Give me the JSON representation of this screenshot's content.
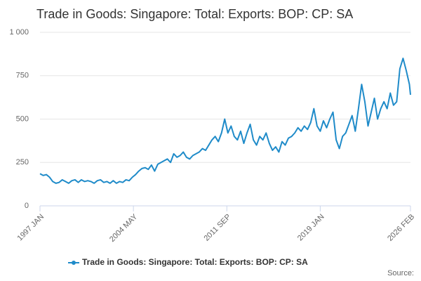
{
  "chart_data": {
    "type": "line",
    "title": "Trade in Goods: Singapore: Total: Exports: BOP: CP: SA",
    "source": "Source:",
    "x": [
      "1997-01",
      "1997-04",
      "1997-07",
      "1997-10",
      "1998-01",
      "1998-04",
      "1998-07",
      "1998-10",
      "1999-01",
      "1999-04",
      "1999-07",
      "1999-10",
      "2000-01",
      "2000-04",
      "2000-07",
      "2000-10",
      "2001-01",
      "2001-04",
      "2001-07",
      "2001-10",
      "2002-01",
      "2002-04",
      "2002-07",
      "2002-10",
      "2003-01",
      "2003-04",
      "2003-07",
      "2003-10",
      "2004-01",
      "2004-04",
      "2004-07",
      "2004-10",
      "2005-01",
      "2005-04",
      "2005-07",
      "2005-10",
      "2006-01",
      "2006-04",
      "2006-07",
      "2006-10",
      "2007-01",
      "2007-04",
      "2007-07",
      "2007-10",
      "2008-01",
      "2008-04",
      "2008-07",
      "2008-10",
      "2009-01",
      "2009-04",
      "2009-07",
      "2009-10",
      "2010-01",
      "2010-04",
      "2010-07",
      "2010-10",
      "2011-01",
      "2011-04",
      "2011-07",
      "2011-10",
      "2012-01",
      "2012-04",
      "2012-07",
      "2012-10",
      "2013-01",
      "2013-04",
      "2013-07",
      "2013-10",
      "2014-01",
      "2014-04",
      "2014-07",
      "2014-10",
      "2015-01",
      "2015-04",
      "2015-07",
      "2015-10",
      "2016-01",
      "2016-04",
      "2016-07",
      "2016-10",
      "2017-01",
      "2017-04",
      "2017-07",
      "2017-10",
      "2018-01",
      "2018-04",
      "2018-07",
      "2018-10",
      "2019-01",
      "2019-04",
      "2019-07",
      "2019-10",
      "2020-01",
      "2020-04",
      "2020-07",
      "2020-10",
      "2021-01",
      "2021-04",
      "2021-07",
      "2021-10",
      "2022-01",
      "2022-04",
      "2022-07",
      "2022-10",
      "2023-01",
      "2023-04",
      "2023-07",
      "2023-10",
      "2024-01",
      "2024-04",
      "2024-07",
      "2024-10",
      "2025-01",
      "2025-04",
      "2025-07",
      "2025-10",
      "2026-01",
      "2026-02"
    ],
    "series": [
      {
        "name": "Trade in Goods: Singapore: Total: Exports: BOP: CP: SA",
        "color": "#1f8bc9",
        "values": [
          185,
          175,
          180,
          165,
          140,
          130,
          135,
          150,
          140,
          130,
          145,
          150,
          135,
          150,
          140,
          145,
          140,
          130,
          145,
          150,
          135,
          140,
          130,
          145,
          130,
          140,
          135,
          150,
          145,
          165,
          180,
          200,
          215,
          220,
          210,
          235,
          200,
          240,
          250,
          260,
          270,
          250,
          300,
          280,
          290,
          310,
          280,
          270,
          290,
          300,
          310,
          330,
          320,
          350,
          380,
          400,
          370,
          420,
          500,
          420,
          460,
          400,
          380,
          430,
          360,
          420,
          470,
          380,
          350,
          400,
          380,
          420,
          360,
          320,
          340,
          310,
          370,
          350,
          390,
          400,
          420,
          450,
          430,
          460,
          440,
          480,
          560,
          460,
          430,
          490,
          450,
          500,
          540,
          380,
          330,
          400,
          420,
          470,
          520,
          430,
          560,
          700,
          600,
          460,
          540,
          620,
          500,
          560,
          600,
          560,
          650,
          580,
          600,
          790,
          850,
          780,
          700,
          640
        ]
      }
    ],
    "xlim": [
      "1997-01",
      "2026-02"
    ],
    "xticks": [
      {
        "value": "1997-01",
        "label": "1997 JAN"
      },
      {
        "value": "2004-05",
        "label": "2004 MAY"
      },
      {
        "value": "2011-09",
        "label": "2011 SEP"
      },
      {
        "value": "2019-01",
        "label": "2019 JAN"
      },
      {
        "value": "2026-02",
        "label": "2026 FEB"
      }
    ],
    "ylim": [
      0,
      1000
    ],
    "yticks": [
      0,
      250,
      500,
      750,
      {
        "value": 1000,
        "label": "1 000"
      }
    ],
    "grid": true
  }
}
